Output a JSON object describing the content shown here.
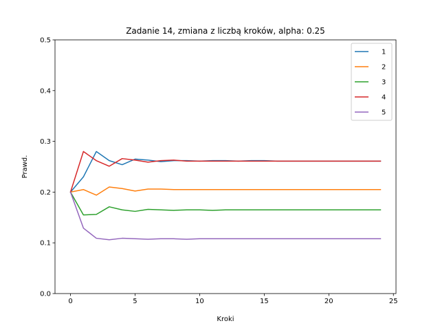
{
  "chart_data": {
    "type": "line",
    "title": "Zadanie 14, zmiana z liczbą kroków, alpha: 0.25",
    "xlabel": "Kroki",
    "ylabel": "Prawd.",
    "xlim": [
      -1.2,
      25.2
    ],
    "ylim": [
      0,
      0.5
    ],
    "xticks": [
      "0",
      "5",
      "10",
      "15",
      "20",
      "25"
    ],
    "yticks": [
      "0.0",
      "0.1",
      "0.2",
      "0.3",
      "0.4",
      "0.5"
    ],
    "grid": false,
    "legend_position": "top-right",
    "x": [
      0,
      1,
      2,
      3,
      4,
      5,
      6,
      7,
      8,
      9,
      10,
      11,
      12,
      13,
      14,
      15,
      16,
      17,
      18,
      19,
      20,
      21,
      22,
      23,
      24
    ],
    "series": [
      {
        "name": "1",
        "color": "#1f77b4",
        "values": [
          0.2,
          0.23,
          0.28,
          0.262,
          0.254,
          0.265,
          0.263,
          0.26,
          0.262,
          0.262,
          0.261,
          0.262,
          0.262,
          0.261,
          0.262,
          0.262,
          0.261,
          0.261,
          0.261,
          0.261,
          0.261,
          0.261,
          0.261,
          0.261,
          0.261
        ]
      },
      {
        "name": "2",
        "color": "#ff7f0e",
        "values": [
          0.2,
          0.205,
          0.194,
          0.21,
          0.207,
          0.202,
          0.206,
          0.206,
          0.205,
          0.205,
          0.205,
          0.205,
          0.205,
          0.205,
          0.205,
          0.205,
          0.205,
          0.205,
          0.205,
          0.205,
          0.205,
          0.205,
          0.205,
          0.205,
          0.205
        ]
      },
      {
        "name": "3",
        "color": "#2ca02c",
        "values": [
          0.2,
          0.155,
          0.156,
          0.171,
          0.165,
          0.162,
          0.166,
          0.165,
          0.164,
          0.165,
          0.165,
          0.164,
          0.165,
          0.165,
          0.165,
          0.165,
          0.165,
          0.165,
          0.165,
          0.165,
          0.165,
          0.165,
          0.165,
          0.165,
          0.165
        ]
      },
      {
        "name": "4",
        "color": "#d62728",
        "values": [
          0.2,
          0.28,
          0.262,
          0.251,
          0.266,
          0.263,
          0.259,
          0.262,
          0.263,
          0.261,
          0.261,
          0.261,
          0.261,
          0.261,
          0.261,
          0.261,
          0.261,
          0.261,
          0.261,
          0.261,
          0.261,
          0.261,
          0.261,
          0.261,
          0.261
        ]
      },
      {
        "name": "5",
        "color": "#9467bd",
        "values": [
          0.2,
          0.129,
          0.109,
          0.106,
          0.109,
          0.108,
          0.107,
          0.108,
          0.108,
          0.107,
          0.108,
          0.108,
          0.108,
          0.108,
          0.108,
          0.108,
          0.108,
          0.108,
          0.108,
          0.108,
          0.108,
          0.108,
          0.108,
          0.108,
          0.108
        ]
      }
    ]
  }
}
